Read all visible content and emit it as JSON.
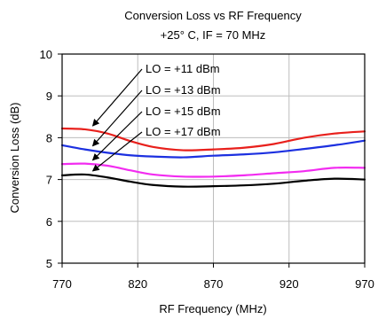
{
  "chart_data": {
    "type": "line",
    "title": "Conversion Loss vs RF Frequency",
    "subtitle": "+25° C, IF = 70 MHz",
    "xlabel": "RF Frequency (MHz)",
    "ylabel": "Conversion Loss (dB)",
    "xlim": [
      770,
      970
    ],
    "ylim": [
      5,
      10
    ],
    "xticks": [
      770,
      820,
      870,
      920,
      970
    ],
    "yticks": [
      5,
      6,
      7,
      8,
      9,
      10
    ],
    "grid": true,
    "colors": {
      "lo11": "#e8201c",
      "lo13": "#1c30e0",
      "lo15": "#f22cf0",
      "lo17": "#000000"
    },
    "series": [
      {
        "name": "LO = +11 dBm",
        "x": [
          770,
          785,
          800,
          815,
          830,
          850,
          870,
          890,
          910,
          930,
          950,
          970
        ],
        "y": [
          8.22,
          8.2,
          8.1,
          7.92,
          7.78,
          7.7,
          7.72,
          7.76,
          7.85,
          8.0,
          8.1,
          8.15
        ]
      },
      {
        "name": "LO = +13 dBm",
        "x": [
          770,
          785,
          800,
          815,
          830,
          850,
          870,
          890,
          910,
          930,
          950,
          970
        ],
        "y": [
          7.82,
          7.72,
          7.64,
          7.58,
          7.55,
          7.53,
          7.57,
          7.6,
          7.65,
          7.73,
          7.82,
          7.93
        ]
      },
      {
        "name": "LO = +15 dBm",
        "x": [
          770,
          785,
          800,
          815,
          830,
          850,
          870,
          890,
          910,
          930,
          950,
          970
        ],
        "y": [
          7.37,
          7.38,
          7.33,
          7.22,
          7.12,
          7.07,
          7.07,
          7.1,
          7.15,
          7.2,
          7.28,
          7.28
        ]
      },
      {
        "name": "LO = +17 dBm",
        "x": [
          770,
          785,
          800,
          815,
          830,
          850,
          870,
          890,
          910,
          930,
          950,
          970
        ],
        "y": [
          7.1,
          7.12,
          7.05,
          6.95,
          6.87,
          6.83,
          6.84,
          6.86,
          6.9,
          6.97,
          7.02,
          7.0
        ]
      }
    ],
    "annotations": [
      {
        "text": "LO = +11 dBm",
        "series": 0,
        "point_x": 785
      },
      {
        "text": "LO = +13 dBm",
        "series": 1,
        "point_x": 785
      },
      {
        "text": "LO = +15 dBm",
        "series": 2,
        "point_x": 785
      },
      {
        "text": "LO = +17 dBm",
        "series": 3,
        "point_x": 785
      }
    ]
  }
}
